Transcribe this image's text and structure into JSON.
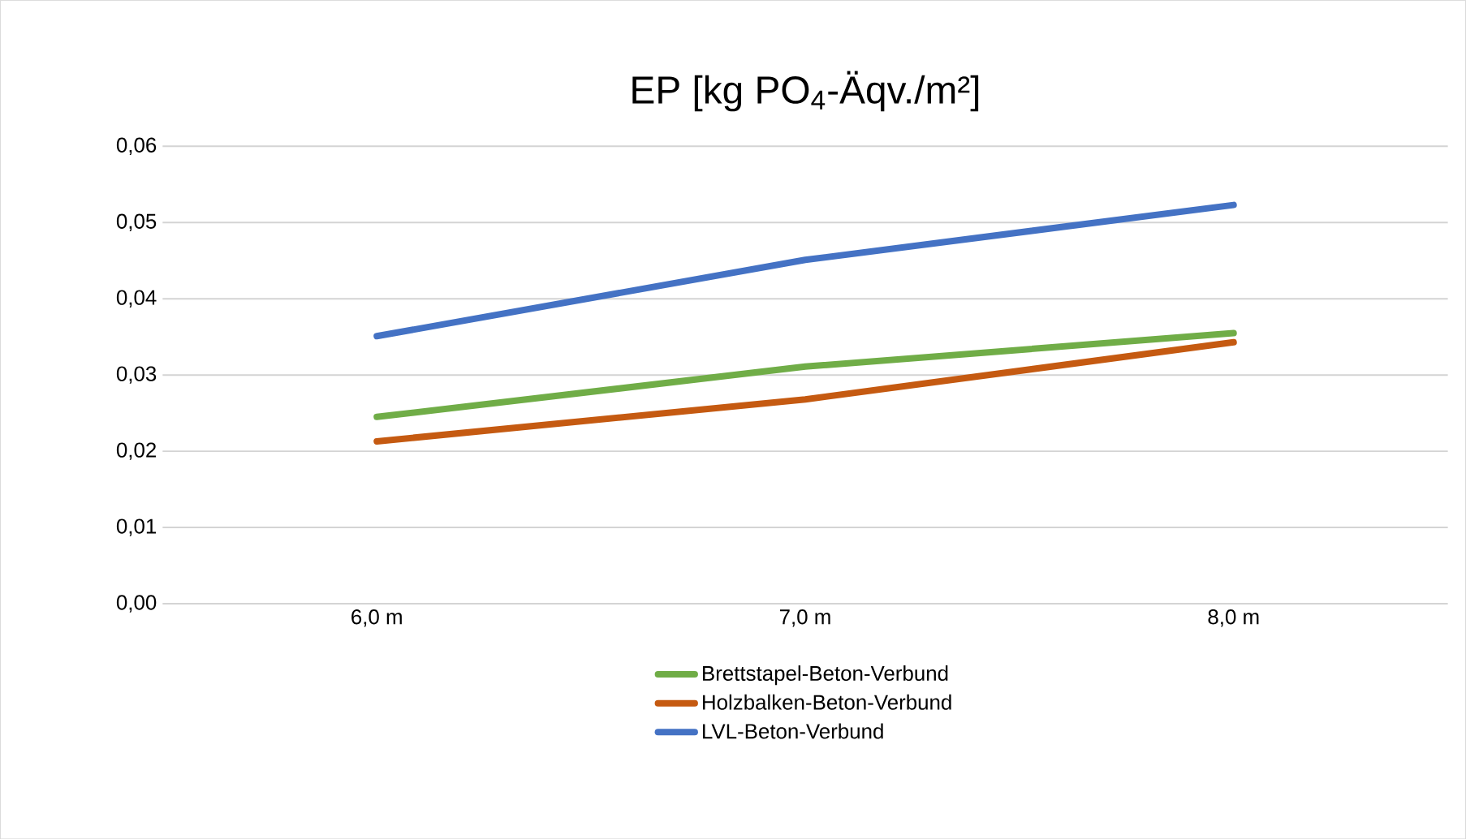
{
  "chart_data": {
    "type": "line",
    "title": "EP [kg PO$_{4}$-Äqv./m²]",
    "categories": [
      "6,0 m",
      "7,0 m",
      "8,0 m"
    ],
    "series": [
      {
        "name": "Brettstapel-Beton-Verbund",
        "color": "#70ad47",
        "values": [
          0.0245,
          0.0311,
          0.0355
        ]
      },
      {
        "name": "Holzbalken-Beton-Verbund",
        "color": "#c55a11",
        "values": [
          0.0213,
          0.0268,
          0.0343
        ]
      },
      {
        "name": "LVL-Beton-Verbund",
        "color": "#4472c4",
        "values": [
          0.0351,
          0.0451,
          0.0523
        ]
      }
    ],
    "ylim": [
      0,
      0.06
    ],
    "yticks": [
      {
        "value": 0,
        "label": "0,00"
      },
      {
        "value": 0.01,
        "label": "0,01"
      },
      {
        "value": 0.02,
        "label": "0,02"
      },
      {
        "value": 0.03,
        "label": "0,03"
      },
      {
        "value": 0.04,
        "label": "0,04"
      },
      {
        "value": 0.05,
        "label": "0,05"
      },
      {
        "value": 0.06,
        "label": "0,06"
      }
    ],
    "grid": "y",
    "legend": "bottom",
    "marker": "none",
    "line_style": "solid"
  }
}
